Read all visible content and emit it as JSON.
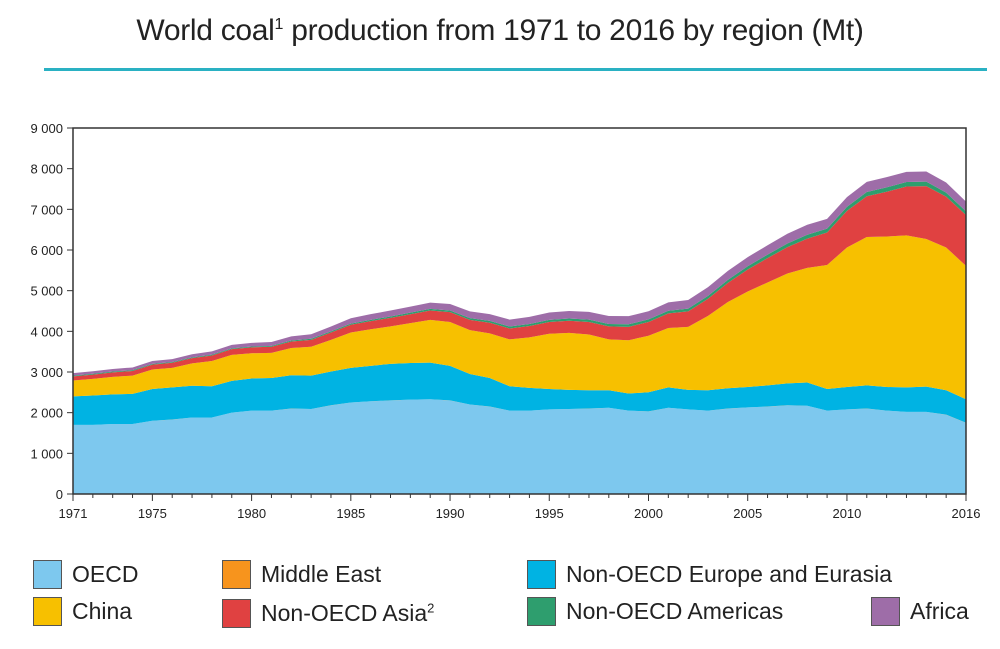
{
  "title": {
    "text": "World coal",
    "sup": "1",
    "rest": " production from 1971 to 2016 by region (Mt)"
  },
  "chart_data": {
    "type": "area",
    "stacked": true,
    "title": "World coal1 production from 1971 to 2016 by region (Mt)",
    "xlabel": "",
    "ylabel": "",
    "xlim": [
      1971,
      2016
    ],
    "ylim": [
      0,
      9000
    ],
    "x_ticks": [
      1971,
      1975,
      1980,
      1985,
      1990,
      1995,
      2000,
      2005,
      2010,
      2016
    ],
    "x_tick_labels": [
      "1971",
      "1975",
      "1980",
      "1985",
      "1990",
      "1995",
      "2000",
      "2005",
      "2010",
      "2016"
    ],
    "y_ticks": [
      0,
      1000,
      2000,
      3000,
      4000,
      5000,
      6000,
      7000,
      8000,
      9000
    ],
    "y_tick_labels": [
      "0",
      "1 000",
      "2 000",
      "3 000",
      "4 000",
      "5 000",
      "6 000",
      "7 000",
      "8 000",
      "9 000"
    ],
    "grid": false,
    "legend_position": "bottom",
    "x": [
      1971,
      1972,
      1973,
      1974,
      1975,
      1976,
      1977,
      1978,
      1979,
      1980,
      1981,
      1982,
      1983,
      1984,
      1985,
      1986,
      1987,
      1988,
      1989,
      1990,
      1991,
      1992,
      1993,
      1994,
      1995,
      1996,
      1997,
      1998,
      1999,
      2000,
      2001,
      2002,
      2003,
      2004,
      2005,
      2006,
      2007,
      2008,
      2009,
      2010,
      2011,
      2012,
      2013,
      2014,
      2015,
      2016
    ],
    "series": [
      {
        "name": "OECD",
        "color": "#7dc8ee",
        "values": [
          1700,
          1700,
          1720,
          1720,
          1800,
          1830,
          1880,
          1880,
          2000,
          2050,
          2050,
          2100,
          2090,
          2180,
          2250,
          2280,
          2300,
          2320,
          2330,
          2300,
          2200,
          2150,
          2050,
          2050,
          2080,
          2090,
          2100,
          2120,
          2050,
          2030,
          2120,
          2080,
          2050,
          2100,
          2130,
          2150,
          2180,
          2170,
          2050,
          2080,
          2100,
          2050,
          2020,
          2020,
          1950,
          1750
        ]
      },
      {
        "name": "Middle East",
        "color": "#f7941d",
        "values": [
          1,
          1,
          1,
          1,
          1,
          1,
          1,
          1,
          1,
          1,
          1,
          1,
          1,
          1,
          1,
          1,
          1,
          1,
          1,
          1,
          1,
          1,
          1,
          1,
          1,
          1,
          1,
          1,
          1,
          1,
          1,
          1,
          1,
          1,
          1,
          1,
          1,
          1,
          1,
          1,
          1,
          1,
          1,
          1,
          1,
          1
        ]
      },
      {
        "name": "Non-OECD Europe and Eurasia",
        "color": "#00b3e3",
        "values": [
          700,
          720,
          730,
          740,
          780,
          790,
          780,
          770,
          780,
          790,
          800,
          820,
          820,
          830,
          850,
          870,
          900,
          900,
          900,
          850,
          750,
          700,
          600,
          560,
          500,
          470,
          450,
          430,
          420,
          470,
          500,
          480,
          500,
          500,
          500,
          520,
          540,
          570,
          530,
          550,
          570,
          580,
          600,
          620,
          600,
          580
        ]
      },
      {
        "name": "China",
        "color": "#f7c000",
        "values": [
          390,
          410,
          430,
          450,
          480,
          480,
          550,
          620,
          640,
          620,
          620,
          670,
          710,
          780,
          870,
          900,
          920,
          980,
          1050,
          1080,
          1080,
          1100,
          1150,
          1240,
          1360,
          1400,
          1370,
          1250,
          1310,
          1390,
          1460,
          1550,
          1830,
          2120,
          2350,
          2530,
          2700,
          2820,
          3050,
          3430,
          3650,
          3700,
          3740,
          3630,
          3510,
          3280
        ]
      },
      {
        "name": "Non-OECD Asia2",
        "color": "#e04141",
        "values": [
          100,
          105,
          110,
          115,
          120,
          125,
          130,
          135,
          140,
          145,
          150,
          160,
          170,
          180,
          190,
          200,
          210,
          220,
          230,
          240,
          250,
          260,
          270,
          280,
          290,
          300,
          310,
          320,
          330,
          340,
          360,
          380,
          420,
          470,
          540,
          600,
          650,
          720,
          800,
          900,
          1000,
          1100,
          1200,
          1300,
          1250,
          1250
        ]
      },
      {
        "name": "Non-OECD Americas",
        "color": "#2e9e6e",
        "values": [
          20,
          20,
          20,
          20,
          20,
          20,
          20,
          20,
          20,
          20,
          22,
          24,
          26,
          28,
          30,
          32,
          35,
          38,
          40,
          42,
          44,
          46,
          48,
          50,
          52,
          55,
          58,
          60,
          62,
          64,
          66,
          68,
          70,
          75,
          80,
          85,
          90,
          95,
          95,
          100,
          105,
          110,
          110,
          110,
          100,
          90
        ]
      },
      {
        "name": "Africa",
        "color": "#9e6da8",
        "values": [
          60,
          62,
          64,
          66,
          68,
          70,
          75,
          80,
          85,
          90,
          95,
          100,
          110,
          120,
          130,
          140,
          145,
          150,
          155,
          160,
          165,
          165,
          170,
          175,
          180,
          185,
          190,
          195,
          200,
          200,
          205,
          210,
          215,
          220,
          225,
          230,
          240,
          245,
          240,
          240,
          250,
          250,
          250,
          250,
          250,
          240
        ]
      }
    ]
  },
  "legend": [
    {
      "label": "OECD",
      "sup": "",
      "color": "#7dc8ee"
    },
    {
      "label": "China",
      "sup": "",
      "color": "#f7c000"
    },
    {
      "label": "Middle East",
      "sup": "",
      "color": "#f7941d"
    },
    {
      "label": "Non-OECD Asia",
      "sup": "2",
      "color": "#e04141"
    },
    {
      "label": "Non-OECD Europe and Eurasia",
      "sup": "",
      "color": "#00b3e3"
    },
    {
      "label": "Non-OECD Americas",
      "sup": "",
      "color": "#2e9e6e"
    },
    {
      "label": "Africa",
      "sup": "",
      "color": "#9e6da8"
    }
  ]
}
